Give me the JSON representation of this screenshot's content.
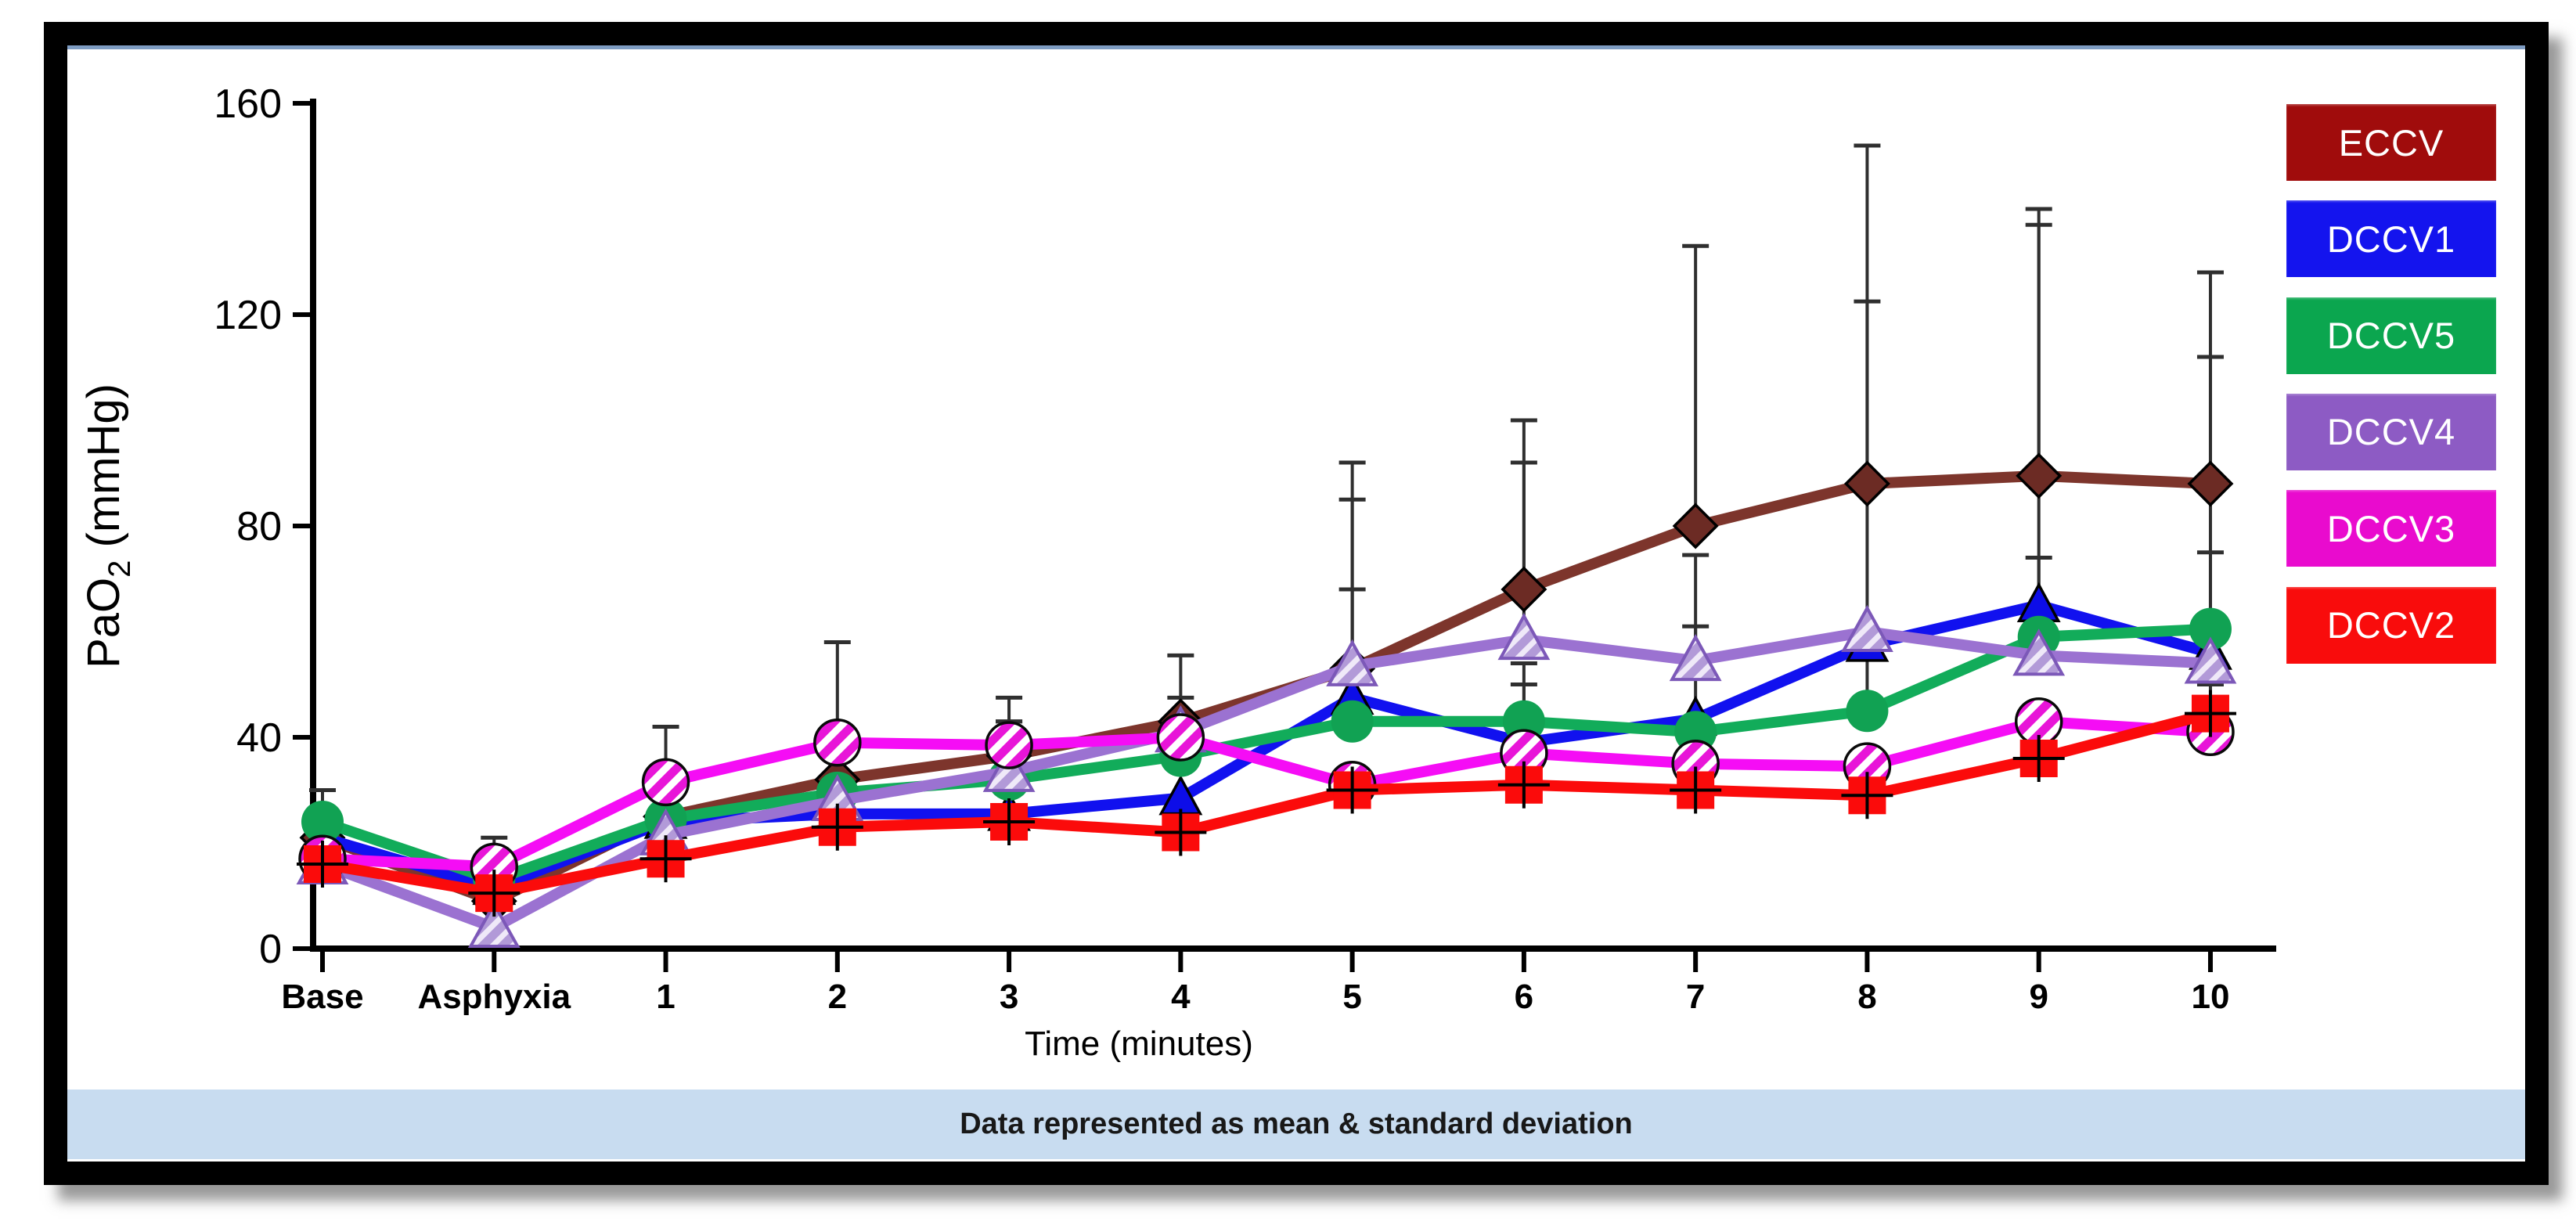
{
  "window": {
    "footer_note": "Data represented as mean & standard deviation"
  },
  "chart_data": {
    "type": "line",
    "title": "",
    "xlabel": "Time (minutes)",
    "ylabel": "PaO2 (mmHg)",
    "ylabel_parts": {
      "base": "PaO",
      "sub": "2",
      "rest": " (mmHg)"
    },
    "ylim": [
      0,
      160
    ],
    "yticks": [
      0,
      40,
      80,
      120,
      160
    ],
    "grid": false,
    "legend_position": "right",
    "error_bars": "upper whiskers, mean + standard deviation",
    "categories": [
      "Base",
      "Asphyxia",
      "1",
      "2",
      "3",
      "4",
      "5",
      "6",
      "7",
      "8",
      "9",
      "10"
    ],
    "series": [
      {
        "name": "ECCV",
        "marker": "diamond",
        "line_color": "#7d352c",
        "marker_color": "#6c2b24",
        "legend_color": "#a00c0c",
        "values": [
          21,
          9,
          25,
          32,
          36.5,
          43,
          53,
          68,
          80,
          88,
          89.5,
          88
        ],
        "sd_top": [
          null,
          null,
          null,
          null,
          43,
          55.5,
          92,
          100,
          133,
          152,
          140,
          128
        ]
      },
      {
        "name": "DCCV1",
        "marker": "triangle",
        "line_color": "#1111ef",
        "marker_color": "#0d0de8",
        "legend_color": "#1414ee",
        "values": [
          21,
          11.5,
          24,
          25.5,
          25.5,
          28.5,
          47.5,
          39,
          43.5,
          57.5,
          65,
          56
        ],
        "sd_top": [
          null,
          null,
          null,
          null,
          null,
          null,
          68,
          null,
          null,
          122.5,
          137,
          112
        ]
      },
      {
        "name": "DCCV5",
        "marker": "circle",
        "line_color": "#12ac5a",
        "marker_color": "#11a253",
        "legend_color": "#0ba64f",
        "values": [
          24,
          13,
          24.5,
          29.5,
          32,
          36.5,
          43,
          43,
          41,
          45,
          59,
          60.5
        ],
        "sd_top": [
          30,
          null,
          null,
          null,
          43,
          null,
          null,
          54,
          61,
          55,
          74,
          75
        ]
      },
      {
        "name": "DCCV4",
        "marker": "triangle-hatched",
        "line_color": "#9b72d1",
        "marker_color": "#b29ad8",
        "legend_color": "#8d5bc4",
        "values": [
          16,
          4,
          21.5,
          28,
          33.5,
          41,
          53.5,
          58.5,
          54.5,
          60,
          55.5,
          54
        ],
        "sd_top": [
          null,
          null,
          null,
          null,
          null,
          47.5,
          85,
          92,
          74.5,
          null,
          null,
          null
        ]
      },
      {
        "name": "DCCV3",
        "marker": "circle-hatched",
        "line_color": "#f50df5",
        "marker_color": "#ffffff",
        "stripe_color": "#e815d8",
        "legend_color": "#e90bce",
        "values": [
          17,
          15.5,
          31.5,
          39,
          38.5,
          40,
          31,
          37,
          35,
          34.5,
          43,
          41
        ],
        "sd_top": [
          null,
          21,
          42,
          58,
          47.5,
          null,
          null,
          50,
          null,
          null,
          null,
          null
        ]
      },
      {
        "name": "DCCV2",
        "marker": "square-cross",
        "line_color": "#fb0b0b",
        "marker_color": "#fb0b0b",
        "legend_color": "#f90c0c",
        "values": [
          16,
          10.5,
          17,
          23,
          24,
          22,
          30,
          31,
          30,
          29,
          36,
          44.5
        ],
        "sd_top": [
          null,
          null,
          null,
          null,
          null,
          null,
          null,
          null,
          null,
          null,
          null,
          50
        ]
      }
    ]
  },
  "legend": {
    "items": [
      {
        "label": "ECCV",
        "color": "#a00c0c"
      },
      {
        "label": "DCCV1",
        "color": "#1414ee"
      },
      {
        "label": "DCCV5",
        "color": "#0ba64f"
      },
      {
        "label": "DCCV4",
        "color": "#8d5bc4"
      },
      {
        "label": "DCCV3",
        "color": "#e90bce"
      },
      {
        "label": "DCCV2",
        "color": "#f90c0c"
      }
    ]
  }
}
